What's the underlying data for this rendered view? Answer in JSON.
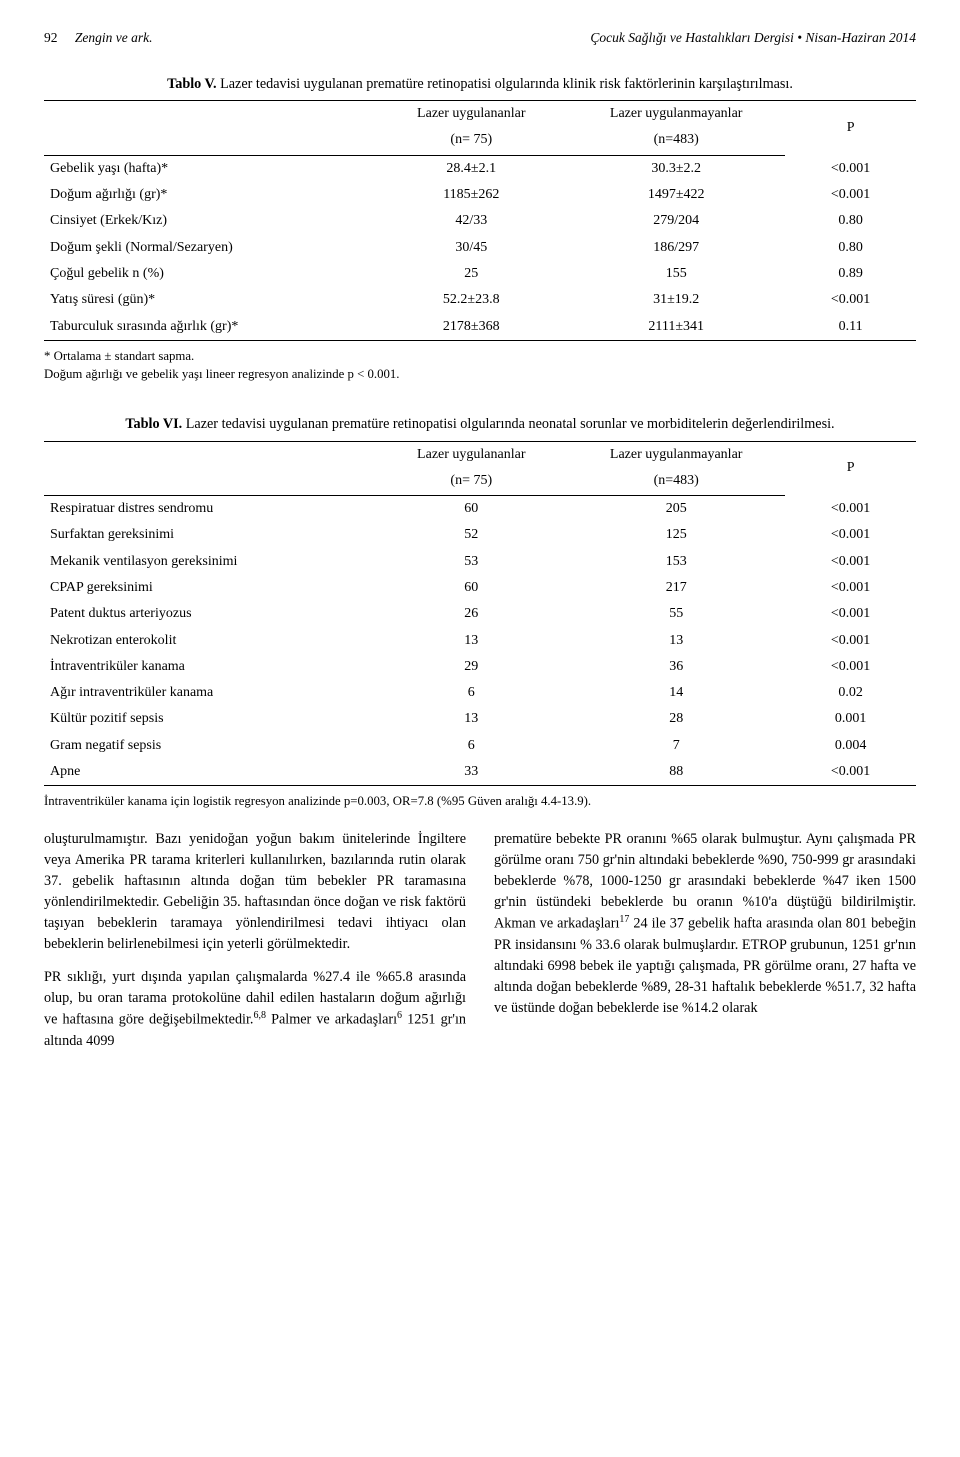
{
  "header": {
    "page_number": "92",
    "left": "Zengin ve ark.",
    "right": "Çocuk Sağlığı ve Hastalıkları Dergisi • Nisan-Haziran 2014"
  },
  "table5": {
    "caption_label": "Tablo V.",
    "caption_text": " Lazer tedavisi uygulanan prematüre retinopatisi olgularında klinik risk faktörlerinin karşılaştırılması.",
    "col_headers": [
      "",
      "Lazer uygulananlar",
      "Lazer uygulanmayanlar",
      "P"
    ],
    "col_sub": [
      "",
      "(n= 75)",
      "(n=483)",
      ""
    ],
    "rows": [
      {
        "label": "Gebelik yaşı (hafta)*",
        "v1": "28.4±2.1",
        "v2": "30.3±2.2",
        "p": "<0.001"
      },
      {
        "label": "Doğum ağırlığı (gr)*",
        "v1": "1185±262",
        "v2": "1497±422",
        "p": "<0.001"
      },
      {
        "label": "Cinsiyet (Erkek/Kız)",
        "v1": "42/33",
        "v2": "279/204",
        "p": "0.80"
      },
      {
        "label": "Doğum şekli (Normal/Sezaryen)",
        "v1": "30/45",
        "v2": "186/297",
        "p": "0.80"
      },
      {
        "label": "Çoğul gebelik n (%)",
        "v1": "25",
        "v2": "155",
        "p": "0.89"
      },
      {
        "label": "Yatış süresi (gün)*",
        "v1": "52.2±23.8",
        "v2": "31±19.2",
        "p": "<0.001"
      },
      {
        "label": "Taburculuk sırasında ağırlık (gr)*",
        "v1": "2178±368",
        "v2": "2111±341",
        "p": "0.11"
      }
    ],
    "footnote1": "* Ortalama ± standart sapma.",
    "footnote2": "Doğum ağırlığı ve gebelik yaşı lineer regresyon analizinde p < 0.001."
  },
  "table6": {
    "caption_label": "Tablo VI.",
    "caption_text": " Lazer tedavisi uygulanan prematüre retinopatisi olgularında neonatal sorunlar ve morbiditelerin değerlendirilmesi.",
    "col_headers": [
      "",
      "Lazer uygulananlar",
      "Lazer uygulanmayanlar",
      "P"
    ],
    "col_sub": [
      "",
      "(n= 75)",
      "(n=483)",
      ""
    ],
    "rows": [
      {
        "label": "Respiratuar distres sendromu",
        "v1": "60",
        "v2": "205",
        "p": "<0.001"
      },
      {
        "label": "Surfaktan gereksinimi",
        "v1": "52",
        "v2": "125",
        "p": "<0.001"
      },
      {
        "label": "Mekanik ventilasyon gereksinimi",
        "v1": "53",
        "v2": "153",
        "p": "<0.001"
      },
      {
        "label": "CPAP gereksinimi",
        "v1": "60",
        "v2": "217",
        "p": "<0.001"
      },
      {
        "label": "Patent duktus arteriyozus",
        "v1": "26",
        "v2": "55",
        "p": "<0.001"
      },
      {
        "label": "Nekrotizan enterokolit",
        "v1": "13",
        "v2": "13",
        "p": "<0.001"
      },
      {
        "label": "İntraventriküler kanama",
        "v1": "29",
        "v2": "36",
        "p": "<0.001"
      },
      {
        "label": "Ağır intraventriküler kanama",
        "v1": "6",
        "v2": "14",
        "p": "0.02"
      },
      {
        "label": "Kültür pozitif sepsis",
        "v1": "13",
        "v2": "28",
        "p": "0.001"
      },
      {
        "label": "Gram negatif sepsis",
        "v1": "6",
        "v2": "7",
        "p": "0.004"
      },
      {
        "label": "Apne",
        "v1": "33",
        "v2": "88",
        "p": "<0.001"
      }
    ],
    "footnote": "İntraventriküler kanama için logistik regresyon analizinde p=0.003, OR=7.8 (%95 Güven aralığı 4.4-13.9)."
  },
  "body": {
    "left_p1": "oluşturulmamıştır. Bazı yenidoğan yoğun bakım ünitelerinde İngiltere veya Amerika PR tarama kriterleri kullanılırken, bazılarında rutin olarak 37. gebelik haftasının altında doğan tüm bebekler PR taramasına yönlendirilmektedir. Gebeliğin 35. haftasından önce doğan ve risk faktörü taşıyan bebeklerin taramaya yönlendirilmesi tedavi ihtiyacı olan bebeklerin belirlenebilmesi için yeterli görülmektedir.",
    "left_p2_a": "PR sıklığı, yurt dışında yapılan çalışmalarda %27.4 ile %65.8 arasında olup, bu oran tarama protokolüne dahil edilen hastaların doğum ağırlığı ve haftasına göre değişebilmektedir.",
    "left_p2_b": " Palmer ve arkadaşları",
    "left_p2_c": " 1251 gr'ın altında 4099",
    "right_p1_a": "prematüre bebekte PR oranını %65 olarak bulmuştur. Aynı çalışmada PR görülme oranı 750 gr'nin altındaki bebeklerde %90, 750-999 gr arasındaki bebeklerde %78, 1000-1250 gr arasındaki bebeklerde %47 iken 1500 gr'nin üstündeki bebeklerde bu oranın %10'a düştüğü bildirilmiştir. Akman ve arkadaşları",
    "right_p1_b": " 24 ile 37 gebelik hafta arasında olan 801 bebeğin PR insidansını % 33.6 olarak bulmuşlardır. ETROP grubunun, 1251 gr'nın altındaki 6998 bebek ile yaptığı çalışmada, PR görülme oranı, 27 hafta ve altında doğan bebeklerde %89, 28-31 haftalık bebeklerde %51.7, 32 hafta ve üstünde doğan bebeklerde ise %14.2 olarak",
    "sup_6_8": "6,8",
    "sup_6": "6",
    "sup_17": "17"
  }
}
